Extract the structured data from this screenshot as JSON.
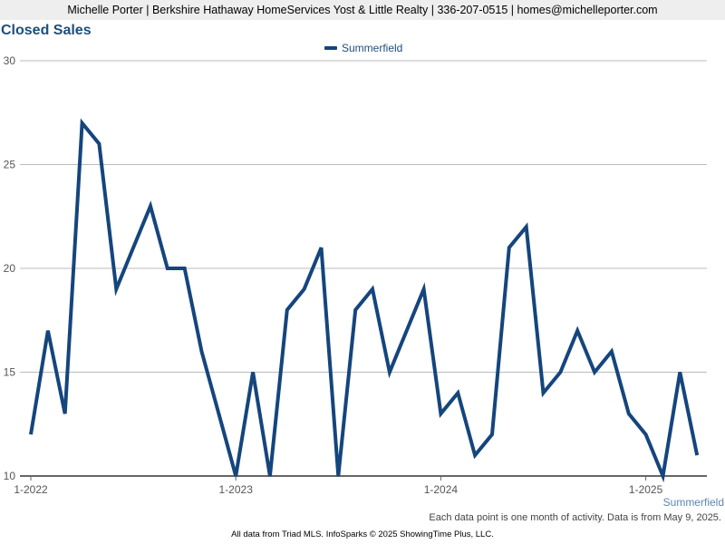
{
  "header": {
    "contact_line": "Michelle Porter | Berkshire Hathaway HomeServices Yost & Little Realty | 336-207-0515 | homes@michelleporter.com"
  },
  "colors": {
    "series_line": "#15457d",
    "title": "#1f4e79",
    "grid": "#bbbbbb",
    "axis": "#666666",
    "header_bg": "#eeeeee"
  },
  "chart_data": {
    "type": "line",
    "title": "Closed Sales",
    "xlabel": "",
    "ylabel": "",
    "ylim": [
      10,
      30
    ],
    "yticks": [
      10,
      15,
      20,
      25,
      30
    ],
    "grid": true,
    "legend_position": "top-center",
    "x_tick_labels": [
      {
        "index": 0,
        "label": "1-2022"
      },
      {
        "index": 12,
        "label": "1-2023"
      },
      {
        "index": 24,
        "label": "1-2024"
      },
      {
        "index": 36,
        "label": "1-2025"
      }
    ],
    "series": [
      {
        "name": "Summerfield",
        "values": [
          12,
          17,
          13,
          27,
          26,
          19,
          21,
          23,
          20,
          20,
          16,
          13,
          10,
          15,
          10,
          18,
          19,
          21,
          10,
          18,
          19,
          15,
          17,
          19,
          13,
          14,
          11,
          12,
          21,
          22,
          14,
          15,
          17,
          15,
          16,
          13,
          12,
          10,
          15,
          11
        ]
      }
    ]
  },
  "series_tag": "Summerfield",
  "footnote": "Each data point is one month of activity. Data is from May 9, 2025.",
  "credit": "All data from Triad MLS. InfoSparks © 2025 ShowingTime Plus, LLC."
}
